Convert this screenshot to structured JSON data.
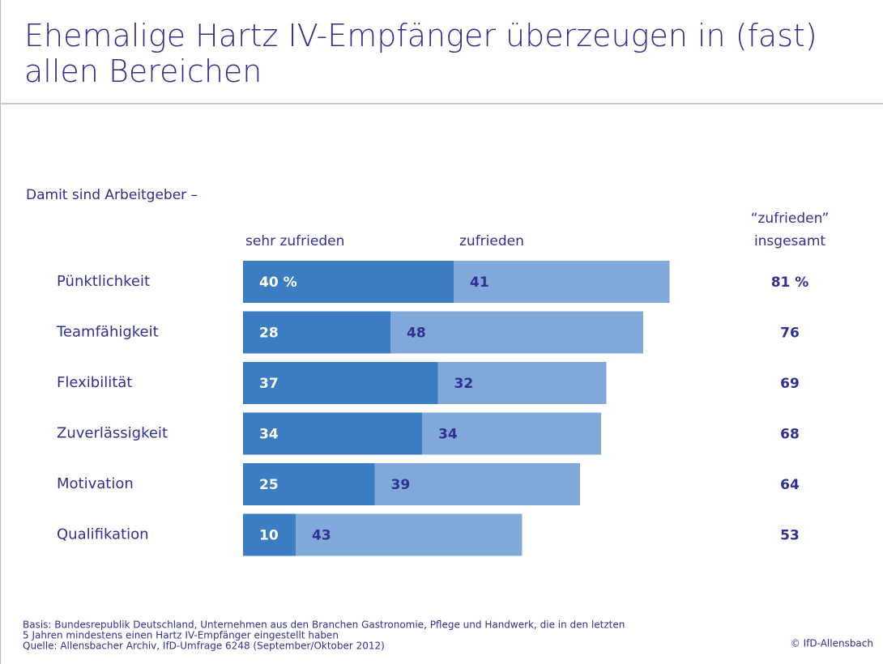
{
  "chart_data": {
    "type": "stacked-bar",
    "title": "Ehemalige Hartz IV-Empfänger überzeugen in (fast) allen Bereichen",
    "subtitle": "Damit sind Arbeitgeber –",
    "categories": [
      "Pünktlichkeit",
      "Teamfähigkeit",
      "Flexibilität",
      "Zuverlässigkeit",
      "Motivation",
      "Qualifikation"
    ],
    "series": [
      {
        "name": "sehr zufrieden",
        "color": "#3a7dc2",
        "values": [
          40,
          28,
          37,
          34,
          25,
          10
        ],
        "value_labels": [
          "40 %",
          "28",
          "37",
          "34",
          "25",
          "10"
        ]
      },
      {
        "name": "zufrieden",
        "color": "#80a9da",
        "values": [
          41,
          48,
          32,
          34,
          39,
          43
        ]
      }
    ],
    "totals": {
      "label": [
        "“zufrieden”",
        "insgesamt"
      ],
      "values": [
        81,
        76,
        69,
        68,
        64,
        53
      ],
      "value_labels": [
        "81 %",
        "76",
        "69",
        "68",
        "64",
        "53"
      ]
    },
    "notes": [
      "Basis: Bundesrepublik Deutschland, Unternehmen aus den Branchen Gastronomie, Pflege und Handwerk, die in den letzten",
      "5 Jahren mindestens einen Hartz IV-Empfänger eingestellt haben",
      "Quelle: Allensbacher Archiv, IfD-Umfrage 6248 (September/Oktober 2012)"
    ],
    "credit": "© IfD-Allensbach"
  }
}
